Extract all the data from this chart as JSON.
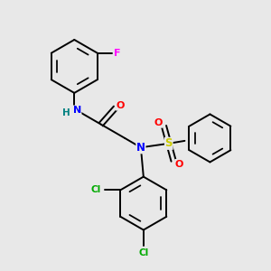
{
  "background_color": "#e8e8e8",
  "bond_color": "#000000",
  "atom_colors": {
    "N": "#0000ff",
    "NH": "#008080",
    "O": "#ff0000",
    "F": "#ff00ff",
    "Cl": "#00aa00",
    "S": "#cccc00",
    "H": "#888888",
    "C": "#000000"
  },
  "figsize": [
    3.0,
    3.0
  ],
  "dpi": 100
}
